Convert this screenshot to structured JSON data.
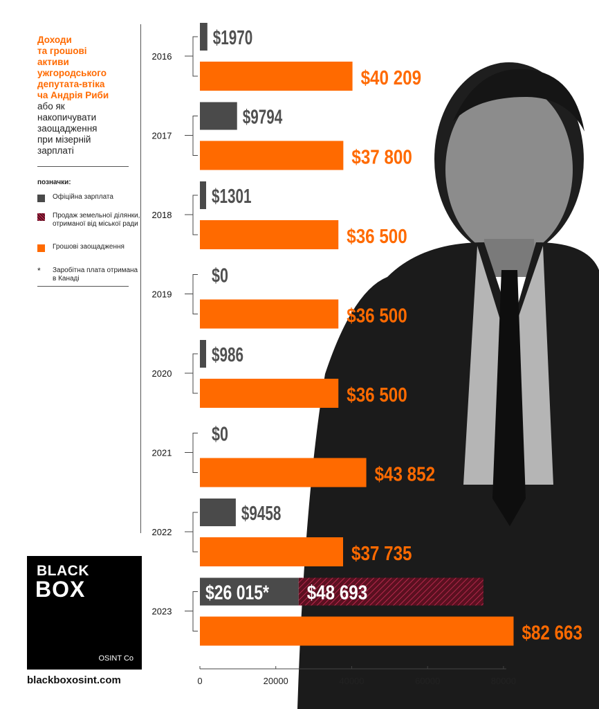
{
  "title": {
    "accent_lines": [
      "Доходи",
      "та грошові",
      "активи",
      "ужгородського",
      "депутата-втіка",
      "ча Андрія Риби"
    ],
    "plain_lines": [
      "або як",
      "накопичувати",
      "заощадження",
      "при мізерній",
      "зарплаті"
    ]
  },
  "legend": {
    "title": "позначки:",
    "items": [
      {
        "label": "Офіційна зарплата",
        "kind": "salary"
      },
      {
        "label": "Продаж земельної ділянки, отриманої від міської ради",
        "kind": "land"
      },
      {
        "label": "Грошові заощадження",
        "kind": "savings"
      },
      {
        "label": "Заробітна плата отримана в Канаді",
        "kind": "note",
        "symbol": "*"
      }
    ]
  },
  "logo": {
    "line1": "BLACK",
    "line2": "BOX",
    "sub": "OSINT Co"
  },
  "site": "blackboxosint.com",
  "colors": {
    "salary": "#4a4a4a",
    "savings": "#ff6a00",
    "land": "#5a1020",
    "land_stripe": "#d4305a",
    "label_dark": "#505050"
  },
  "chart_data": {
    "type": "bar",
    "orientation": "horizontal",
    "xlim": [
      0,
      80000
    ],
    "xticks": [
      "0",
      "20000",
      "40000",
      "60000",
      "80000"
    ],
    "categories": [
      "2016",
      "2017",
      "2018",
      "2019",
      "2020",
      "2021",
      "2022",
      "2023"
    ],
    "series": [
      {
        "name": "Офіційна зарплата",
        "values": [
          1970,
          9794,
          1301,
          0,
          986,
          0,
          9458,
          26015
        ],
        "labels": [
          "$1970",
          "$9794",
          "$1301",
          "$0",
          "$986",
          "$0",
          "$9458",
          "$26 015*"
        ]
      },
      {
        "name": "Продаж земельної ділянки, отриманої від міської ради",
        "values": [
          0,
          0,
          0,
          0,
          0,
          0,
          0,
          48693
        ],
        "labels": [
          "",
          "",
          "",
          "",
          "",
          "",
          "",
          "$48 693"
        ]
      },
      {
        "name": "Грошові заощадження",
        "values": [
          40209,
          37800,
          36500,
          36500,
          36500,
          43852,
          37735,
          82663
        ],
        "labels": [
          "$40 209",
          "$37 800",
          "$36 500",
          "$36 500",
          "$36 500",
          "$43 852",
          "$37 735",
          "$82 663"
        ]
      }
    ]
  }
}
